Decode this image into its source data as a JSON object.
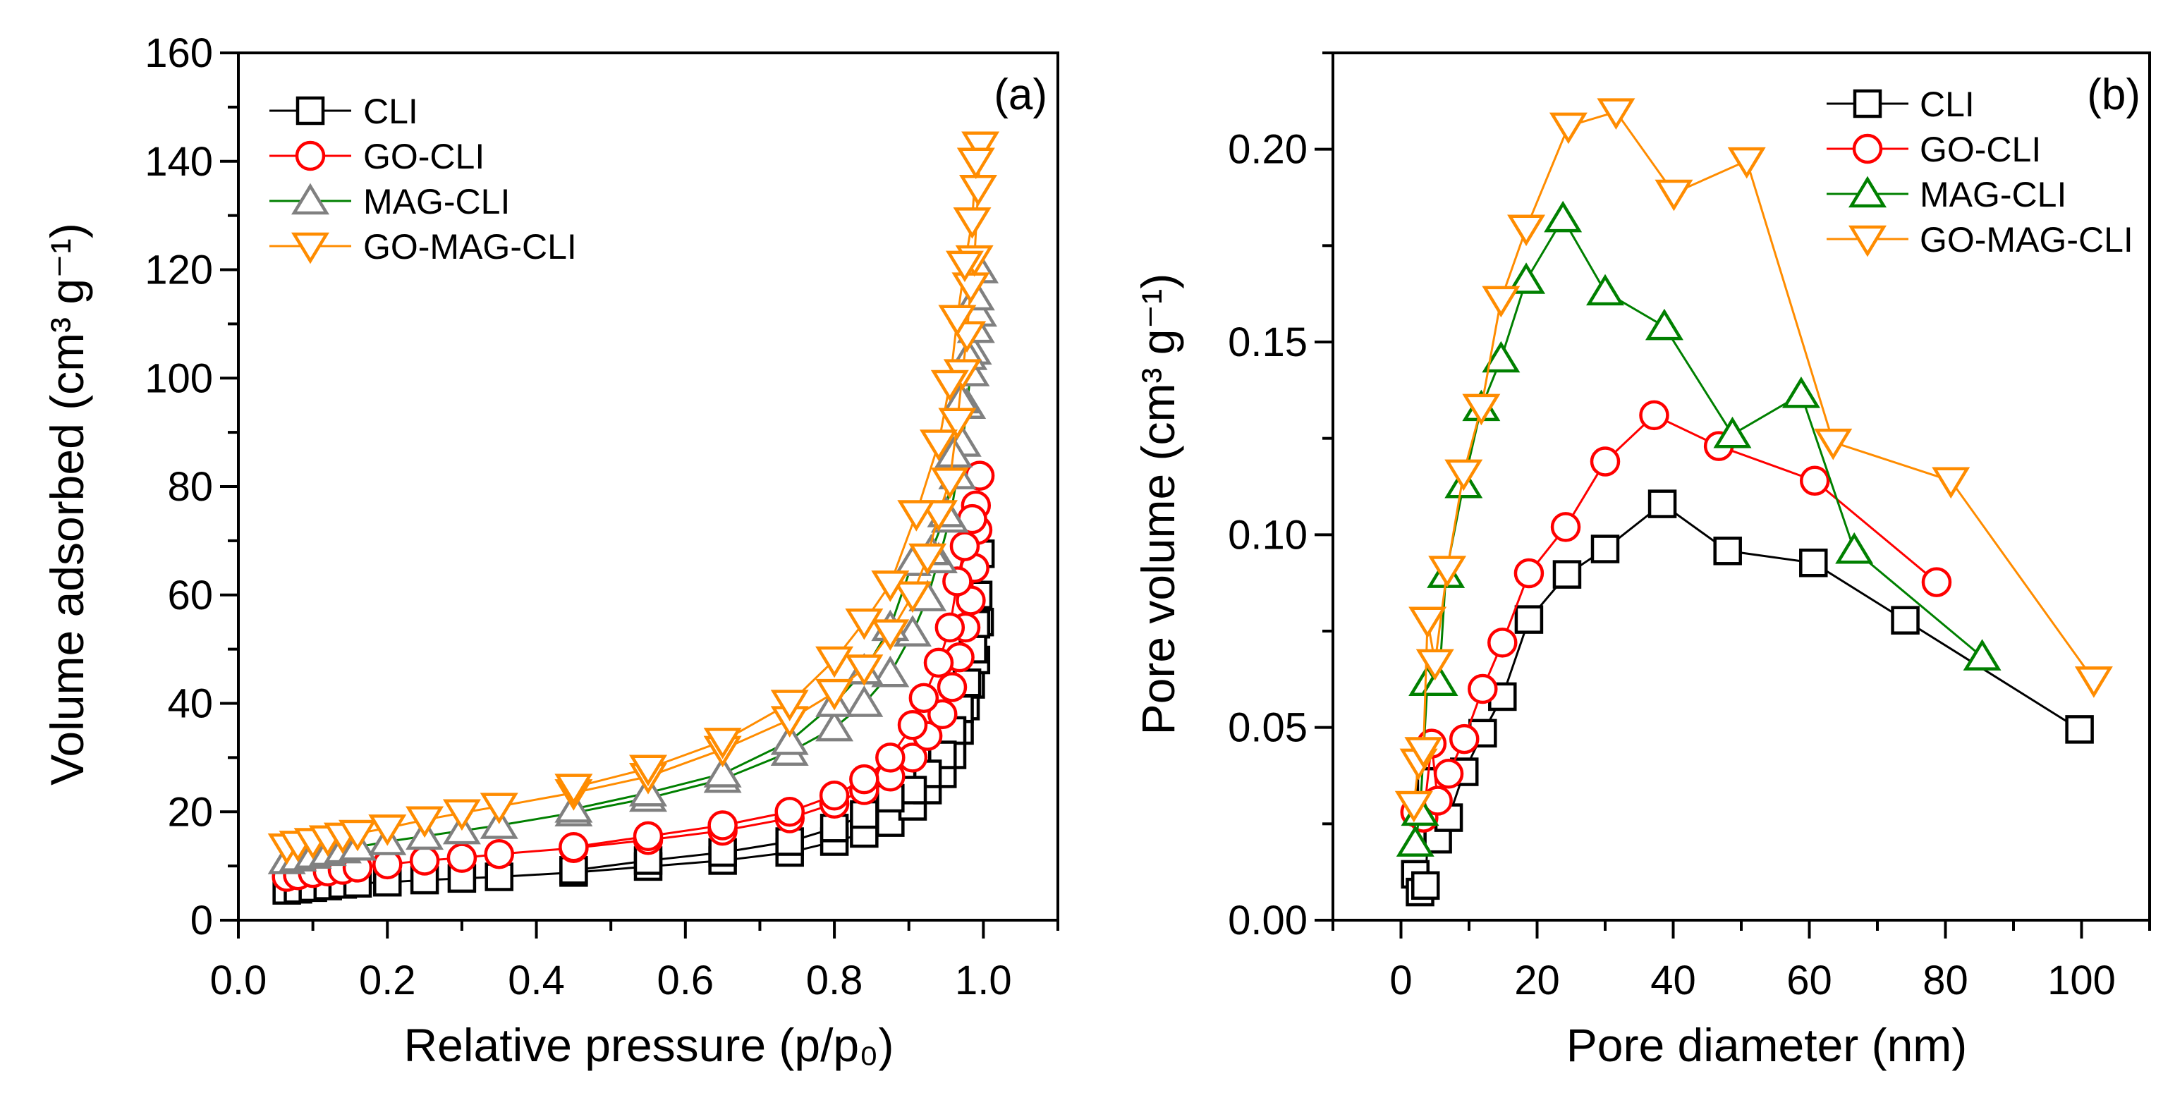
{
  "chart_data": [
    {
      "type": "line",
      "panel_label": "(a)",
      "xlabel": "Relative pressure (p/p₀)",
      "ylabel": "Volume adsorbed (cm³ g⁻¹)",
      "xlim": [
        0.0,
        1.1
      ],
      "ylim": [
        0,
        160
      ],
      "xticks": [
        "0.0",
        "0.2",
        "0.4",
        "0.6",
        "0.8",
        "1.0"
      ],
      "yticks": [
        "0",
        "20",
        "40",
        "60",
        "80",
        "100",
        "120",
        "140",
        "160"
      ],
      "grid": false,
      "legend_position": "top-left",
      "series": [
        {
          "name": "CLI",
          "color": "#000000",
          "marker_color": "#000000",
          "marker": "square",
          "adsorption": {
            "x": [
              0.065,
              0.08,
              0.1,
              0.12,
              0.14,
              0.16,
              0.2,
              0.25,
              0.3,
              0.35,
              0.45,
              0.55,
              0.65,
              0.74,
              0.8,
              0.84,
              0.875,
              0.905,
              0.925,
              0.945,
              0.958,
              0.968,
              0.976,
              0.983,
              0.99,
              0.995
            ],
            "y": [
              5.5,
              5.7,
              6,
              6.3,
              6.6,
              6.8,
              7,
              7.4,
              7.7,
              8,
              8.8,
              9.9,
              11,
              12.5,
              14.5,
              16,
              18,
              21,
              24,
              27,
              30.5,
              35,
              39.5,
              43.5,
              48,
              55
            ]
          },
          "desorption": {
            "x": [
              0.996,
              0.993,
              0.99,
              0.986,
              0.978,
              0.968,
              0.958,
              0.945,
              0.925,
              0.905,
              0.875,
              0.84,
              0.8,
              0.74,
              0.65,
              0.55,
              0.45
            ],
            "y": [
              67.6,
              60,
              54.6,
              50,
              43.8,
              39,
              35,
              30.5,
              27,
              24,
              22.5,
              19.5,
              17,
              14.5,
              12.5,
              11,
              9.2
            ]
          }
        },
        {
          "name": "GO-CLI",
          "color": "#ff0000",
          "marker_color": "#ff0000",
          "marker": "circle",
          "adsorption": {
            "x": [
              0.065,
              0.08,
              0.1,
              0.12,
              0.14,
              0.16,
              0.2,
              0.25,
              0.3,
              0.35,
              0.45,
              0.55,
              0.65,
              0.74,
              0.8,
              0.84,
              0.875,
              0.905,
              0.925,
              0.945,
              0.958,
              0.968,
              0.976,
              0.983,
              0.988,
              0.992,
              0.995
            ],
            "y": [
              8,
              8.3,
              8.7,
              9,
              9.3,
              9.7,
              10.3,
              11,
              11.5,
              12.2,
              13.3,
              14.8,
              16.5,
              18.8,
              21.5,
              24,
              26.5,
              30,
              34,
              38,
              43,
              48.5,
              54,
              59,
              65,
              72,
              82
            ]
          },
          "desorption": {
            "x": [
              0.99,
              0.985,
              0.975,
              0.965,
              0.955,
              0.94,
              0.92,
              0.905,
              0.875,
              0.84,
              0.8,
              0.74,
              0.65,
              0.55,
              0.45
            ],
            "y": [
              76.5,
              74,
              69,
              62.5,
              54,
              47.5,
              41,
              36,
              30,
              26,
              23,
              20,
              17.5,
              15.5,
              13.5
            ]
          }
        },
        {
          "name": "MAG-CLI",
          "color": "#008000",
          "marker_color": "#808080",
          "marker": "triangle-up",
          "adsorption": {
            "x": [
              0.065,
              0.08,
              0.1,
              0.12,
              0.14,
              0.16,
              0.2,
              0.25,
              0.3,
              0.35,
              0.45,
              0.55,
              0.65,
              0.74,
              0.8,
              0.84,
              0.875,
              0.905,
              0.925,
              0.94,
              0.955,
              0.965,
              0.972,
              0.978,
              0.983,
              0.986,
              0.99,
              0.993,
              0.995
            ],
            "y": [
              11,
              11.5,
              12,
              12.5,
              13,
              13.5,
              14.5,
              15.5,
              16.5,
              17.5,
              19.8,
              22.5,
              26,
              31,
              35.5,
              40,
              45.5,
              53,
              59.5,
              66.5,
              74,
              82,
              88,
              95,
              101,
              105,
              109,
              112,
              120
            ]
          },
          "desorption": {
            "x": [
              0.99,
              0.98,
              0.97,
              0.96,
              0.95,
              0.93,
              0.905,
              0.875,
              0.84,
              0.8,
              0.74,
              0.65,
              0.55,
              0.45
            ],
            "y": [
              115,
              104,
              96,
              86,
              75,
              68,
              66,
              54,
              46,
              40,
              33,
              27,
              23.5,
              20.5
            ]
          }
        },
        {
          "name": "GO-MAG-CLI",
          "color": "#ff8c00",
          "marker_color": "#ff8c00",
          "marker": "triangle-down",
          "adsorption": {
            "x": [
              0.065,
              0.08,
              0.1,
              0.12,
              0.14,
              0.16,
              0.2,
              0.25,
              0.3,
              0.35,
              0.45,
              0.55,
              0.65,
              0.74,
              0.8,
              0.84,
              0.875,
              0.905,
              0.925,
              0.94,
              0.955,
              0.965,
              0.972,
              0.978,
              0.983,
              0.988,
              0.993,
              0.996
            ],
            "y": [
              13.5,
              14,
              14.5,
              15,
              15.5,
              16,
              17,
              18.5,
              19.8,
              21,
              23.5,
              26.5,
              31.5,
              37,
              42,
              46.5,
              53,
              60,
              67,
              75,
              81,
              92,
              101,
              108,
              117,
              122,
              135,
              143
            ]
          },
          "desorption": {
            "x": [
              0.99,
              0.985,
              0.975,
              0.965,
              0.955,
              0.94,
              0.91,
              0.875,
              0.84,
              0.8,
              0.74,
              0.65,
              0.55,
              0.45
            ],
            "y": [
              140,
              129,
              121,
              111,
              99,
              88,
              75,
              62,
              55,
              48,
              40,
              33,
              28,
              24.5
            ]
          }
        }
      ]
    },
    {
      "type": "line",
      "panel_label": "(b)",
      "xlabel": "Pore diameter (nm)",
      "ylabel": "Pore volume (cm³ g⁻¹)",
      "xlim": [
        -10,
        110
      ],
      "ylim": [
        0.0,
        0.225
      ],
      "xticks": [
        "0",
        "20",
        "40",
        "60",
        "80",
        "100"
      ],
      "yticks": [
        "0.00",
        "0.05",
        "0.10",
        "0.15",
        "0.20"
      ],
      "grid": false,
      "legend_position": "top-right",
      "series": [
        {
          "name": "CLI",
          "color": "#000000",
          "marker_color": "#000000",
          "marker": "square",
          "x": [
            2.1,
            2.8,
            3.6,
            4.3,
            5.4,
            7,
            9.3,
            12,
            14.9,
            18.8,
            24.4,
            30,
            38.4,
            48,
            60.6,
            74.1,
            99.7
          ],
          "y": [
            0.0119,
            0.0073,
            0.009,
            0.036,
            0.021,
            0.0266,
            0.0385,
            0.0485,
            0.058,
            0.078,
            0.0897,
            0.0963,
            0.108,
            0.0958,
            0.0927,
            0.0778,
            0.0495
          ]
        },
        {
          "name": "GO-CLI",
          "color": "#ff0000",
          "marker_color": "#ff0000",
          "marker": "circle",
          "x": [
            2.1,
            3.3,
            4.5,
            5.4,
            7,
            9.3,
            12,
            14.9,
            18.8,
            24.2,
            30,
            37.2,
            46.7,
            60.8,
            78.7
          ],
          "y": [
            0.028,
            0.0266,
            0.0458,
            0.031,
            0.038,
            0.047,
            0.06,
            0.072,
            0.09,
            0.102,
            0.119,
            0.131,
            0.123,
            0.114,
            0.0877
          ]
        },
        {
          "name": "MAG-CLI",
          "color": "#008000",
          "marker_color": "#008000",
          "marker": "triangle-up",
          "x": [
            2.1,
            2.8,
            3.9,
            5.6,
            6.6,
            9.2,
            11.8,
            14.7,
            18.4,
            23.8,
            30,
            38.7,
            48.7,
            58.8,
            66.6,
            85.4
          ],
          "y": [
            0.02,
            0.028,
            0.0617,
            0.0617,
            0.0897,
            0.113,
            0.133,
            0.1456,
            0.166,
            0.182,
            0.163,
            0.154,
            0.126,
            0.1364,
            0.096,
            0.0683
          ]
        },
        {
          "name": "GO-MAG-CLI",
          "color": "#ff8c00",
          "marker_color": "#ff8c00",
          "marker": "triangle-down",
          "x": [
            1.9,
            2.6,
            3.3,
            3.9,
            5,
            6.8,
            9.2,
            11.8,
            14.7,
            18.4,
            24.6,
            31.6,
            40.1,
            50.8,
            63.5,
            80.8,
            101.8
          ],
          "y": [
            0.03,
            0.041,
            0.044,
            0.0778,
            0.0668,
            0.091,
            0.116,
            0.133,
            0.161,
            0.1795,
            0.206,
            0.2097,
            0.1886,
            0.197,
            0.124,
            0.114,
            0.0623
          ]
        }
      ]
    }
  ]
}
